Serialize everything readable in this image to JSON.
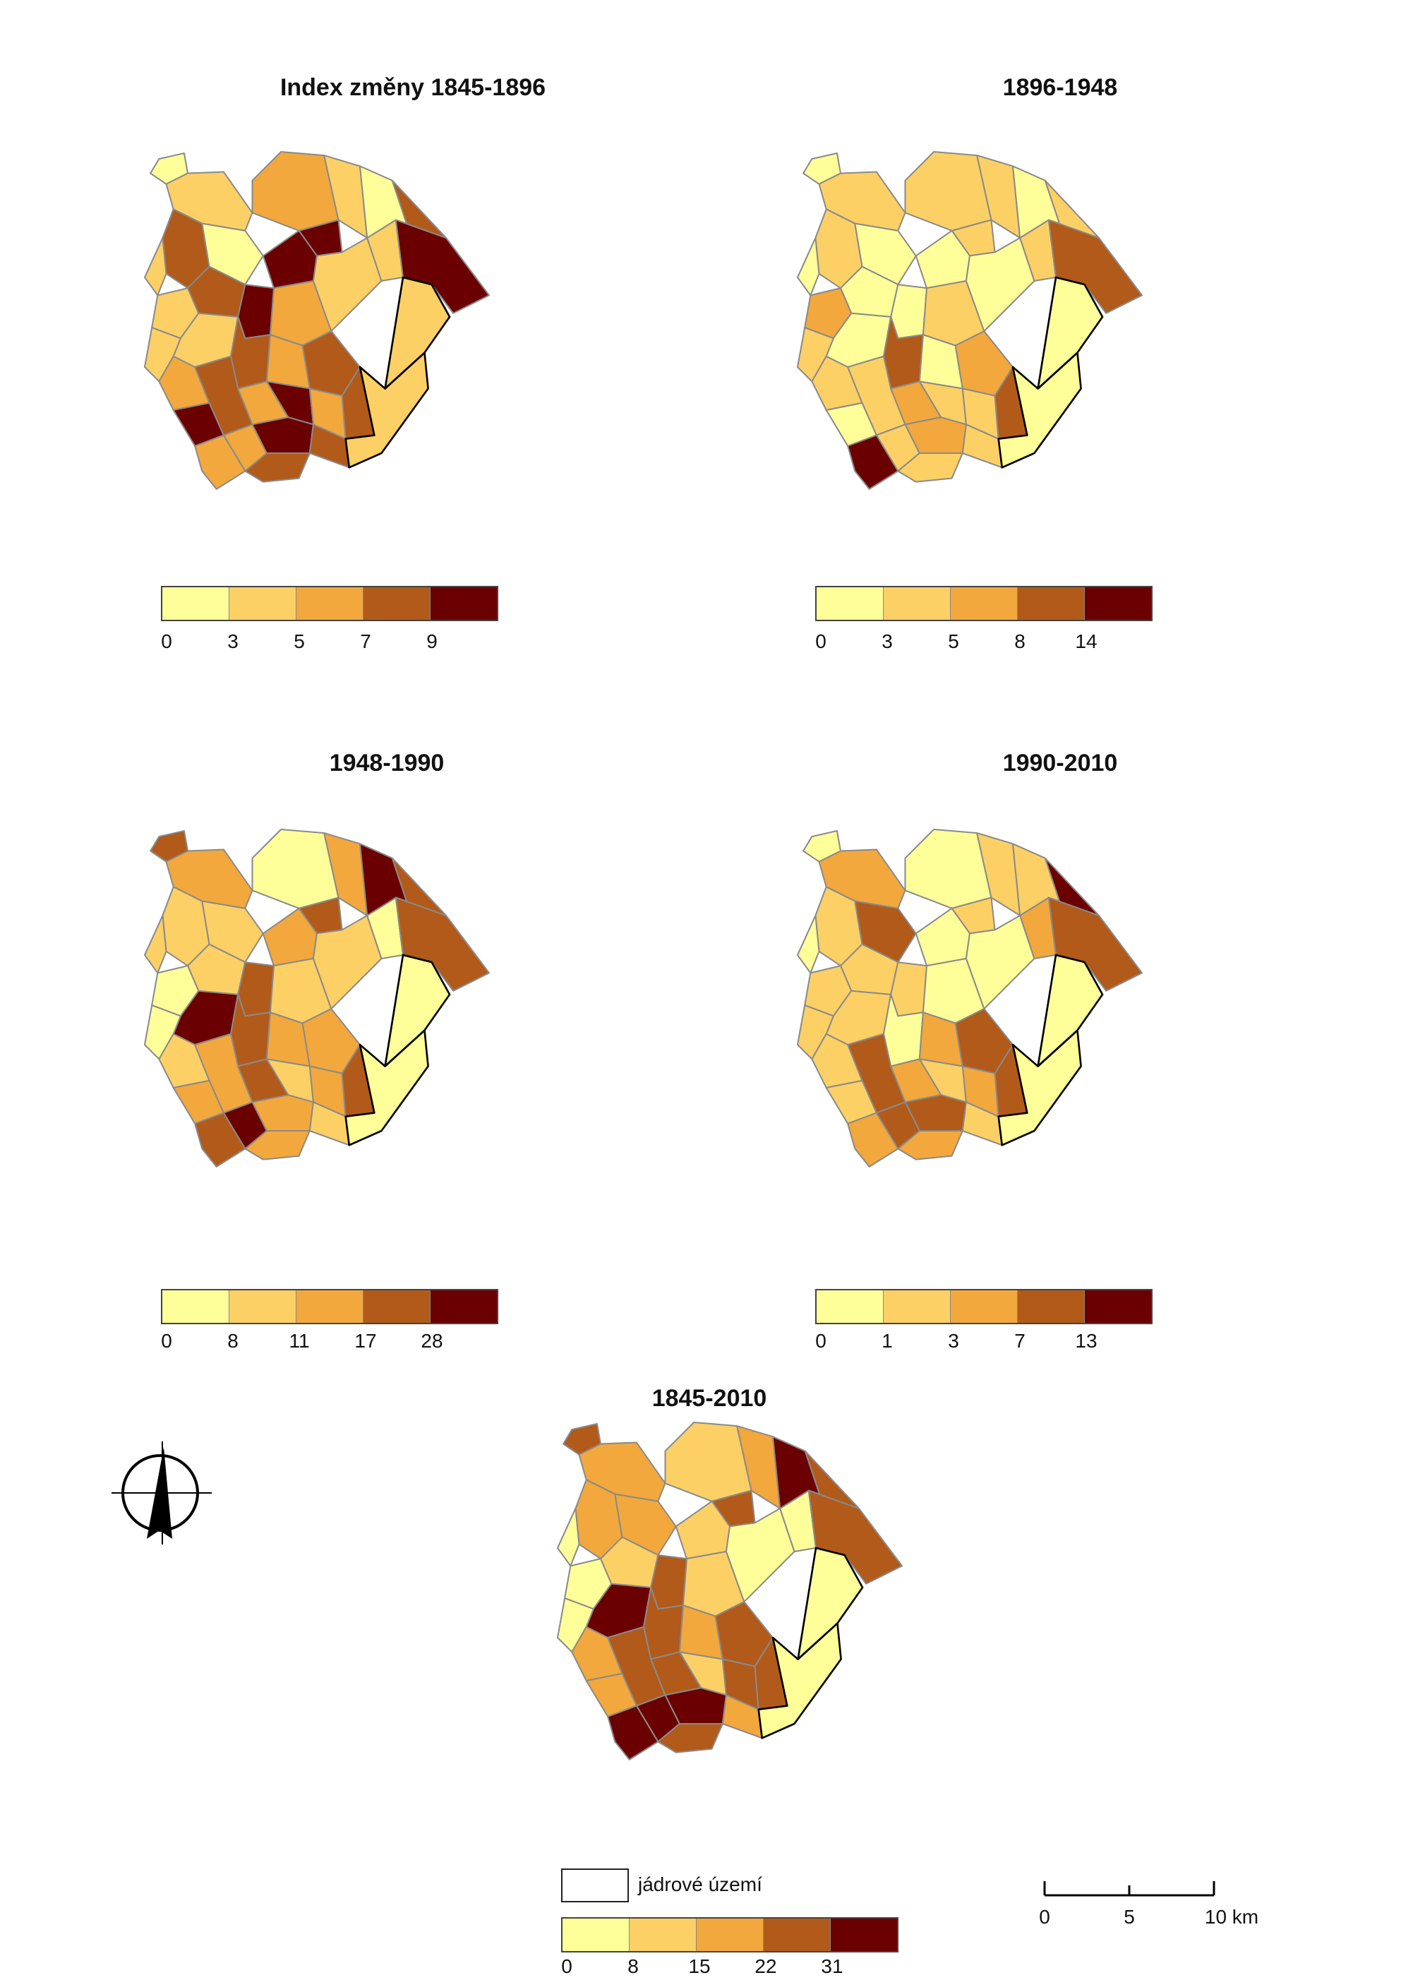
{
  "colors": [
    "#ffff99",
    "#fcd065",
    "#f2a83c",
    "#b15a1a",
    "#6b0000"
  ],
  "maps": [
    {
      "id": "p1845-1896",
      "title": "Index změny 1845-1896",
      "ticks": [
        "0",
        "3",
        "5",
        "7",
        "9"
      ],
      "classes": [
        0,
        1,
        3,
        1,
        0,
        2,
        1,
        4,
        4,
        3,
        1,
        4,
        2,
        1,
        1,
        0,
        3,
        1,
        3,
        2,
        3,
        1,
        2,
        3,
        2,
        4,
        2,
        3,
        4,
        2,
        4,
        3,
        2,
        3,
        1,
        4,
        1
      ]
    },
    {
      "id": "p1896-1948",
      "title": "1896-1948",
      "ticks": [
        "0",
        "3",
        "5",
        "8",
        "14"
      ],
      "classes": [
        0,
        1,
        1,
        0,
        0,
        1,
        1,
        1,
        0,
        0,
        2,
        0,
        1,
        0,
        1,
        0,
        1,
        0,
        3,
        0,
        2,
        1,
        1,
        1,
        2,
        1,
        1,
        3,
        0,
        1,
        2,
        1,
        4,
        1,
        0,
        3,
        0
      ]
    },
    {
      "id": "p1948-1990",
      "title": "1948-1990",
      "ticks": [
        "0",
        "8",
        "11",
        "17",
        "28"
      ],
      "classes": [
        3,
        2,
        1,
        1,
        1,
        0,
        2,
        3,
        2,
        1,
        0,
        3,
        1,
        1,
        0,
        4,
        3,
        4,
        3,
        2,
        2,
        0,
        1,
        2,
        3,
        1,
        2,
        3,
        2,
        4,
        2,
        1,
        3,
        2,
        0,
        3,
        0
      ]
    },
    {
      "id": "p1990-2010",
      "title": "1990-2010",
      "ticks": [
        "0",
        "1",
        "3",
        "7",
        "13"
      ],
      "classes": [
        0,
        2,
        1,
        0,
        3,
        0,
        1,
        1,
        0,
        1,
        1,
        1,
        0,
        0,
        2,
        1,
        4,
        1,
        0,
        2,
        3,
        1,
        1,
        3,
        2,
        1,
        2,
        3,
        1,
        3,
        3,
        1,
        2,
        2,
        0,
        3,
        0
      ]
    },
    {
      "id": "p1845-2010",
      "title": "1845-2010",
      "ticks": [
        "0",
        "8",
        "15",
        "22",
        "31"
      ],
      "classes": [
        3,
        2,
        2,
        0,
        2,
        1,
        2,
        3,
        1,
        1,
        0,
        3,
        1,
        0,
        0,
        4,
        3,
        4,
        3,
        2,
        3,
        0,
        2,
        3,
        3,
        1,
        3,
        3,
        2,
        4,
        4,
        2,
        4,
        3,
        0,
        3,
        0
      ]
    }
  ],
  "core_legend": {
    "label": "jádrové území"
  },
  "scale": {
    "ticks": [
      "0",
      "5",
      "10 km"
    ]
  }
}
